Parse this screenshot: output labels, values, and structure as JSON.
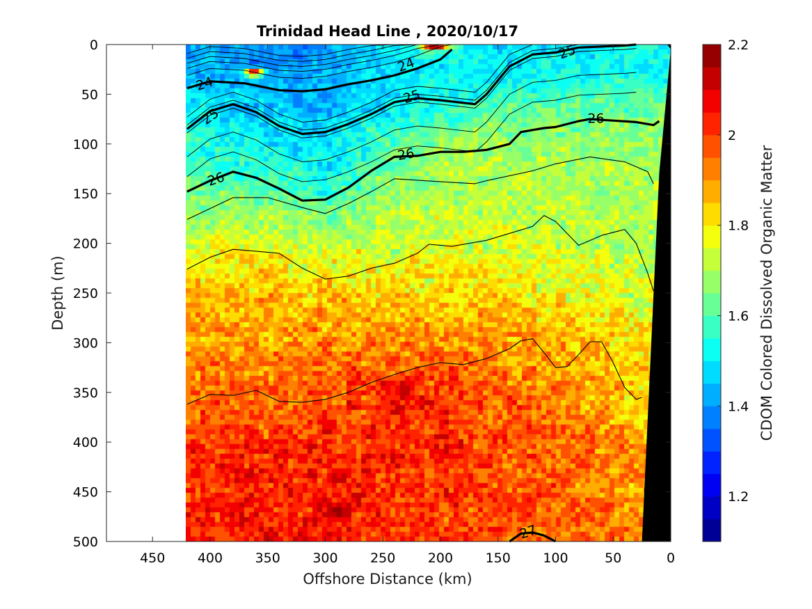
{
  "chart_data": {
    "type": "heatmap",
    "title": "Trinidad Head Line , 2020/10/17",
    "xlabel": "Offshore Distance (km)",
    "ylabel": "Depth (m)",
    "colorbar_label": "CDOM Colored Dissolved Organic Matter",
    "xlim": [
      490,
      0
    ],
    "ylim": [
      500,
      0
    ],
    "x_ticks": [
      450,
      400,
      350,
      300,
      250,
      200,
      150,
      100,
      50,
      0
    ],
    "y_ticks": [
      0,
      50,
      100,
      150,
      200,
      250,
      300,
      350,
      400,
      450,
      500
    ],
    "colorbar_range": [
      1.1,
      2.2
    ],
    "colorbar_ticks": [
      1.2,
      1.4,
      1.6,
      1.8,
      2.0,
      2.2
    ],
    "colorbar_tick_labels": [
      "1.2",
      "1.4",
      "1.6",
      "1.8",
      "2",
      "2.2"
    ],
    "colormap": "jet",
    "data_extent_x": [
      420,
      0
    ],
    "profile_x": [
      420,
      350,
      300,
      250,
      200,
      150,
      100,
      50,
      0
    ],
    "value_profile_by_depth": [
      {
        "depth": 0,
        "values": [
          1.44,
          1.38,
          1.4,
          1.46,
          1.58,
          1.48,
          1.52,
          1.52,
          1.52
        ]
      },
      {
        "depth": 25,
        "values": [
          1.46,
          1.38,
          1.42,
          1.48,
          1.5,
          1.48,
          1.52,
          1.52,
          1.52
        ]
      },
      {
        "depth": 50,
        "values": [
          1.5,
          1.44,
          1.42,
          1.48,
          1.52,
          1.56,
          1.58,
          1.58,
          1.6
        ]
      },
      {
        "depth": 100,
        "values": [
          1.56,
          1.52,
          1.46,
          1.58,
          1.66,
          1.68,
          1.68,
          1.68,
          1.68
        ]
      },
      {
        "depth": 150,
        "values": [
          1.62,
          1.62,
          1.56,
          1.66,
          1.7,
          1.72,
          1.7,
          1.7,
          1.7
        ]
      },
      {
        "depth": 200,
        "values": [
          1.74,
          1.76,
          1.74,
          1.74,
          1.76,
          1.74,
          1.74,
          1.7,
          1.72
        ]
      },
      {
        "depth": 250,
        "values": [
          1.86,
          1.84,
          1.84,
          1.82,
          1.82,
          1.8,
          1.8,
          1.76,
          1.74
        ]
      },
      {
        "depth": 300,
        "values": [
          1.9,
          1.9,
          1.92,
          1.92,
          1.94,
          1.9,
          1.86,
          1.82,
          1.78
        ]
      },
      {
        "depth": 350,
        "values": [
          1.94,
          1.96,
          1.98,
          2.0,
          2.0,
          1.96,
          1.92,
          1.86,
          1.8
        ]
      },
      {
        "depth": 400,
        "values": [
          2.0,
          2.02,
          2.02,
          2.02,
          2.02,
          1.98,
          1.96,
          1.9,
          1.84
        ]
      },
      {
        "depth": 450,
        "values": [
          2.02,
          2.04,
          2.04,
          2.02,
          2.0,
          1.98,
          1.96,
          1.92,
          1.86
        ]
      },
      {
        "depth": 500,
        "values": [
          2.02,
          2.04,
          2.04,
          2.02,
          2.0,
          1.98,
          1.96,
          1.92,
          1.88
        ]
      }
    ],
    "density_contours": [
      {
        "label": "24",
        "bold": true,
        "labeled_at": [
          405,
          39
        ],
        "points": [
          [
            420,
            44
          ],
          [
            400,
            37
          ],
          [
            370,
            39
          ],
          [
            340,
            46
          ],
          [
            320,
            47
          ],
          [
            300,
            45
          ],
          [
            280,
            40
          ],
          [
            260,
            36
          ],
          [
            240,
            31
          ],
          [
            220,
            24
          ],
          [
            200,
            15
          ],
          [
            190,
            5
          ]
        ]
      },
      {
        "label": "25",
        "bold": true,
        "labeled_at": [
          225,
          52
        ],
        "points": [
          [
            420,
            85
          ],
          [
            400,
            67
          ],
          [
            380,
            60
          ],
          [
            360,
            68
          ],
          [
            340,
            82
          ],
          [
            320,
            90
          ],
          [
            300,
            88
          ],
          [
            280,
            80
          ],
          [
            260,
            70
          ],
          [
            240,
            58
          ],
          [
            220,
            54
          ],
          [
            200,
            56
          ],
          [
            170,
            60
          ],
          [
            160,
            50
          ],
          [
            140,
            22
          ],
          [
            120,
            10
          ],
          [
            100,
            8
          ],
          [
            80,
            3
          ],
          [
            40,
            1
          ],
          [
            30,
            0
          ]
        ]
      },
      {
        "label": "26",
        "bold": true,
        "labeled_at": [
          395,
          135
        ],
        "points": [
          [
            420,
            148
          ],
          [
            400,
            137
          ],
          [
            380,
            128
          ],
          [
            360,
            134
          ],
          [
            340,
            145
          ],
          [
            320,
            157
          ],
          [
            300,
            156
          ],
          [
            280,
            144
          ],
          [
            260,
            127
          ],
          [
            240,
            113
          ],
          [
            220,
            112
          ],
          [
            200,
            108
          ],
          [
            180,
            108
          ],
          [
            160,
            106
          ],
          [
            140,
            100
          ],
          [
            130,
            88
          ],
          [
            110,
            84
          ],
          [
            100,
            83
          ],
          [
            80,
            77
          ],
          [
            70,
            75
          ],
          [
            30,
            78
          ],
          [
            15,
            81
          ],
          [
            10,
            77
          ]
        ]
      },
      {
        "label": "27",
        "bold": true,
        "labeled_at": [
          124,
          490
        ],
        "points": [
          [
            140,
            500
          ],
          [
            130,
            492
          ],
          [
            120,
            491
          ],
          [
            110,
            494
          ],
          [
            100,
            500
          ]
        ]
      },
      {
        "label": "",
        "bold": false,
        "points": [
          [
            420,
            176
          ],
          [
            400,
            165
          ],
          [
            380,
            154
          ],
          [
            350,
            154
          ],
          [
            320,
            164
          ],
          [
            300,
            170
          ],
          [
            280,
            160
          ],
          [
            260,
            148
          ],
          [
            240,
            135
          ],
          [
            200,
            138
          ],
          [
            170,
            140
          ],
          [
            160,
            137
          ],
          [
            120,
            127
          ],
          [
            100,
            120
          ],
          [
            70,
            113
          ],
          [
            40,
            118
          ],
          [
            20,
            128
          ],
          [
            15,
            140
          ]
        ]
      },
      {
        "label": "",
        "bold": false,
        "points": [
          [
            420,
            226
          ],
          [
            400,
            214
          ],
          [
            380,
            206
          ],
          [
            340,
            210
          ],
          [
            320,
            225
          ],
          [
            300,
            236
          ],
          [
            280,
            233
          ],
          [
            260,
            225
          ],
          [
            240,
            220
          ],
          [
            220,
            210
          ],
          [
            210,
            201
          ],
          [
            190,
            203
          ],
          [
            160,
            197
          ],
          [
            140,
            190
          ],
          [
            120,
            183
          ],
          [
            110,
            172
          ],
          [
            100,
            178
          ],
          [
            80,
            202
          ],
          [
            60,
            192
          ],
          [
            40,
            186
          ],
          [
            30,
            200
          ],
          [
            20,
            230
          ],
          [
            15,
            248
          ]
        ]
      },
      {
        "label": "",
        "bold": false,
        "points": [
          [
            420,
            362
          ],
          [
            400,
            352
          ],
          [
            380,
            353
          ],
          [
            360,
            348
          ],
          [
            340,
            359
          ],
          [
            320,
            360
          ],
          [
            300,
            357
          ],
          [
            280,
            350
          ],
          [
            260,
            340
          ],
          [
            240,
            332
          ],
          [
            220,
            325
          ],
          [
            200,
            320
          ],
          [
            180,
            322
          ],
          [
            160,
            316
          ],
          [
            140,
            306
          ],
          [
            130,
            298
          ],
          [
            120,
            296
          ],
          [
            110,
            310
          ],
          [
            100,
            325
          ],
          [
            90,
            324
          ],
          [
            80,
            312
          ],
          [
            70,
            299
          ],
          [
            60,
            299
          ],
          [
            50,
            320
          ],
          [
            40,
            345
          ],
          [
            30,
            357
          ],
          [
            25,
            355
          ]
        ]
      }
    ],
    "thin_isopycnals_near_surface": [
      {
        "depth": 3
      },
      {
        "depth": 8
      },
      {
        "depth": 13
      },
      {
        "depth": 18
      },
      {
        "depth": 25
      },
      {
        "depth": 58
      },
      {
        "depth": 66
      },
      {
        "depth": 74
      },
      {
        "depth": 98
      },
      {
        "depth": 118
      }
    ],
    "warm_patches": [
      {
        "x": 362,
        "depth": 28,
        "value": 2.1,
        "radius_km": 8,
        "radius_m": 4
      },
      {
        "x": 205,
        "depth": 2,
        "value": 2.15,
        "radius_km": 12,
        "radius_m": 3
      },
      {
        "x": 288,
        "depth": 470,
        "value": 2.18,
        "radius_km": 10,
        "radius_m": 8
      },
      {
        "x": 230,
        "depth": 345,
        "value": 2.12,
        "radius_km": 10,
        "radius_m": 10
      }
    ],
    "bathymetry": {
      "color": "#000000",
      "points": [
        [
          0,
          5
        ],
        [
          3,
          0
        ],
        [
          0,
          0
        ],
        [
          0,
          500
        ],
        [
          25,
          500
        ],
        [
          10,
          130
        ],
        [
          0,
          5
        ]
      ]
    },
    "colors": {
      "background": "#ffffff",
      "axis": "#262626"
    }
  }
}
